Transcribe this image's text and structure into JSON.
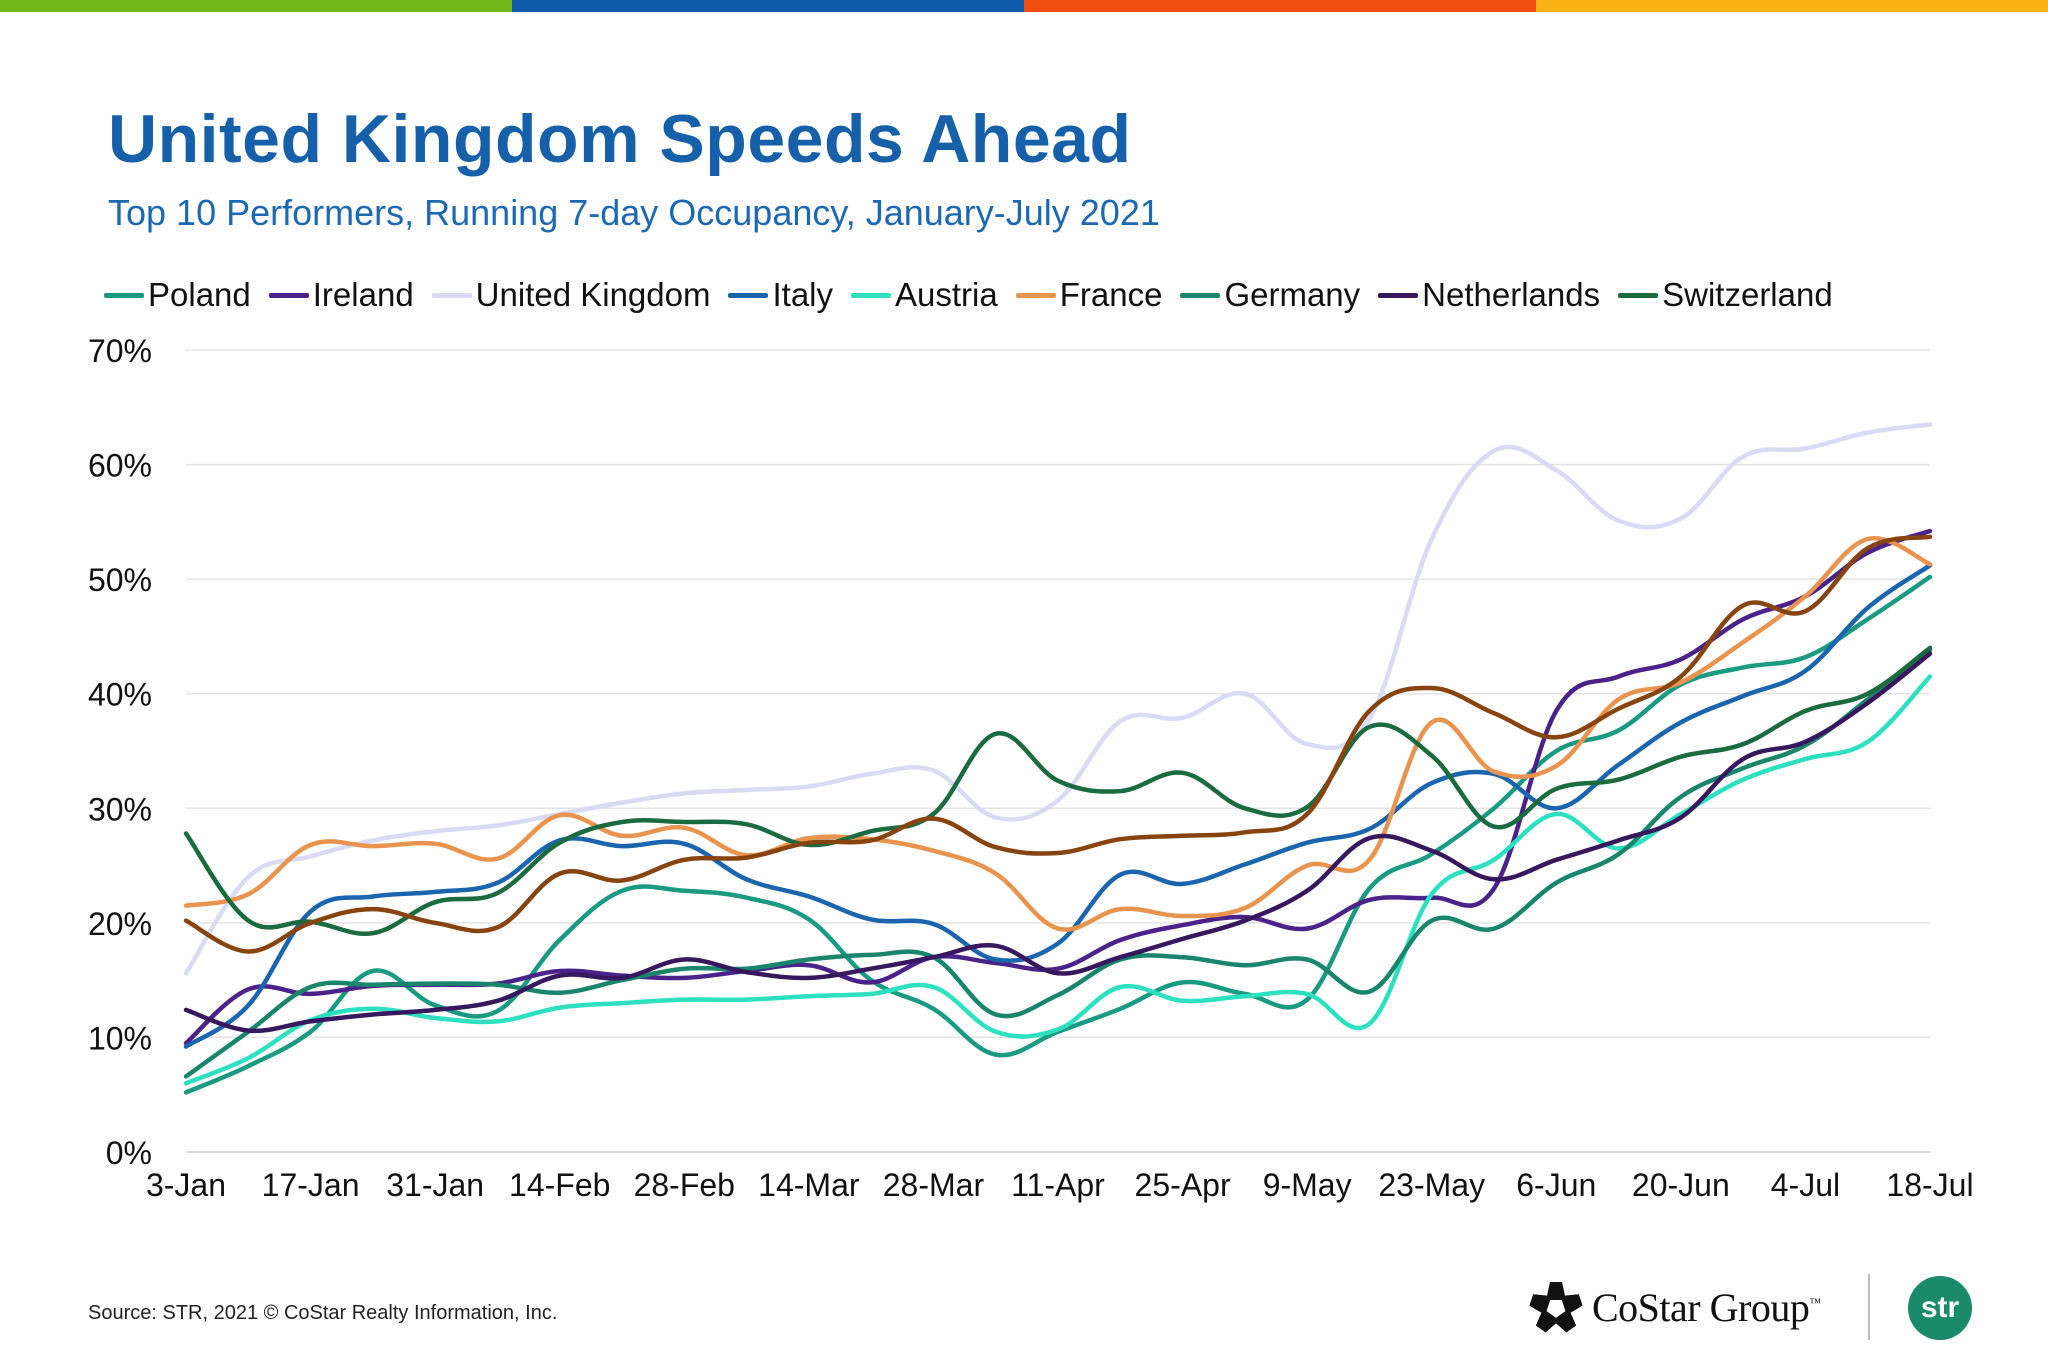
{
  "colors": {
    "top_bar": [
      "#72b81c",
      "#0e5aa9",
      "#f04e0e",
      "#fbb215"
    ],
    "title": "#1560a9",
    "subtitle": "#1d68b2",
    "str_badge": "#1a8a6a"
  },
  "header": {
    "title": "United Kingdom Speeds Ahead",
    "subtitle": "Top 10 Performers, Running 7-day Occupancy, January-July 2021"
  },
  "footer": {
    "source": "Source: STR, 2021 © CoStar Realty Information, Inc.",
    "costar_logo_text": "CoStar Group",
    "costar_trademark": "™",
    "str_logo_text": "str"
  },
  "chart_data": {
    "type": "line",
    "title": "United Kingdom Speeds Ahead",
    "subtitle": "Top 10 Performers, Running 7-day Occupancy, January-July 2021",
    "xlabel": "",
    "ylabel": "",
    "ylim": [
      0,
      70
    ],
    "yticks": [
      0,
      10,
      20,
      30,
      40,
      50,
      60,
      70
    ],
    "ytick_labels": [
      "0%",
      "10%",
      "20%",
      "30%",
      "40%",
      "50%",
      "60%",
      "70%"
    ],
    "grid": true,
    "legend_position": "top",
    "x": [
      "3-Jan",
      "10-Jan",
      "17-Jan",
      "24-Jan",
      "31-Jan",
      "7-Feb",
      "14-Feb",
      "21-Feb",
      "28-Feb",
      "7-Mar",
      "14-Mar",
      "21-Mar",
      "28-Mar",
      "4-Apr",
      "11-Apr",
      "18-Apr",
      "25-Apr",
      "2-May",
      "9-May",
      "16-May",
      "23-May",
      "30-May",
      "6-Jun",
      "13-Jun",
      "20-Jun",
      "27-Jun",
      "4-Jul",
      "11-Jul",
      "18-Jul"
    ],
    "xtick_labels": [
      "3-Jan",
      "17-Jan",
      "31-Jan",
      "14-Feb",
      "28-Feb",
      "14-Mar",
      "28-Mar",
      "11-Apr",
      "25-Apr",
      "9-May",
      "23-May",
      "6-Jun",
      "20-Jun",
      "4-Jul",
      "18-Jul"
    ],
    "series": [
      {
        "name": "Poland",
        "in_legend": true,
        "color": "#199a81",
        "values": [
          5.2,
          7.5,
          10.5,
          15.8,
          12.8,
          12.3,
          18.5,
          22.8,
          22.8,
          22.2,
          20.3,
          15.0,
          12.5,
          8.5,
          10.5,
          12.5,
          14.8,
          13.8,
          13.3,
          23.0,
          26.0,
          30.0,
          35.0,
          36.8,
          40.8,
          42.3,
          43.2,
          46.5,
          50.2
        ]
      },
      {
        "name": "Ireland",
        "in_legend": true,
        "color": "#4a228a",
        "values": [
          9.5,
          14.2,
          13.8,
          14.5,
          14.6,
          14.7,
          15.8,
          15.4,
          15.2,
          15.8,
          16.3,
          14.8,
          17.0,
          16.5,
          16.0,
          18.5,
          19.8,
          20.5,
          19.5,
          22.0,
          22.2,
          23.0,
          38.5,
          41.5,
          43.0,
          46.5,
          48.5,
          52.3,
          54.2
        ]
      },
      {
        "name": "United Kingdom",
        "in_legend": true,
        "color": "#d9daf3",
        "values": [
          15.6,
          24.0,
          25.8,
          27.2,
          28.0,
          28.5,
          29.5,
          30.5,
          31.3,
          31.6,
          31.9,
          33.0,
          33.3,
          29.2,
          30.7,
          37.6,
          37.9,
          40.0,
          35.6,
          37.8,
          53.5,
          61.2,
          59.5,
          55.1,
          55.3,
          60.7,
          61.4,
          62.8,
          63.5
        ]
      },
      {
        "name": "Italy",
        "in_legend": true,
        "color": "#1b65ae",
        "values": [
          9.2,
          12.8,
          21.0,
          22.3,
          22.7,
          23.5,
          27.2,
          26.7,
          26.9,
          23.8,
          22.3,
          20.3,
          19.9,
          16.8,
          18.2,
          24.2,
          23.4,
          25.1,
          27.0,
          28.2,
          32.2,
          33.0,
          30.0,
          33.8,
          37.5,
          39.8,
          42.0,
          47.5,
          51.2
        ]
      },
      {
        "name": "Austria",
        "in_legend": true,
        "color": "#2de0bf",
        "values": [
          6.0,
          8.2,
          11.5,
          12.5,
          11.7,
          11.4,
          12.6,
          13.0,
          13.3,
          13.3,
          13.6,
          13.8,
          14.4,
          10.5,
          10.7,
          14.4,
          13.2,
          13.6,
          13.8,
          11.2,
          22.5,
          25.5,
          29.5,
          26.5,
          29.5,
          32.5,
          34.3,
          35.8,
          41.5
        ]
      },
      {
        "name": "France",
        "in_legend": true,
        "color": "#e8944e",
        "values": [
          21.5,
          22.5,
          26.8,
          26.7,
          26.9,
          25.6,
          29.4,
          27.6,
          28.3,
          25.9,
          27.4,
          27.3,
          26.3,
          24.3,
          19.5,
          21.2,
          20.6,
          21.3,
          25.0,
          25.5,
          37.5,
          33.2,
          33.7,
          39.5,
          41.0,
          44.5,
          48.5,
          53.5,
          51.3
        ]
      },
      {
        "name": "Germany",
        "in_legend": true,
        "color": "#19866c",
        "values": [
          6.6,
          10.5,
          14.4,
          14.6,
          14.7,
          14.6,
          13.9,
          15.0,
          16.0,
          16.0,
          16.8,
          17.2,
          17.0,
          12.0,
          13.7,
          16.8,
          17.0,
          16.3,
          16.8,
          14.0,
          20.2,
          19.5,
          23.5,
          26.0,
          31.0,
          33.5,
          35.5,
          39.5,
          43.8
        ]
      },
      {
        "name": "Netherlands",
        "in_legend": true,
        "color": "#37175e",
        "values": [
          12.4,
          10.6,
          11.4,
          12.0,
          12.4,
          13.2,
          15.4,
          15.2,
          16.8,
          15.7,
          15.2,
          16.0,
          17.0,
          18.0,
          15.6,
          17.0,
          18.6,
          20.2,
          22.8,
          27.4,
          26.3,
          23.8,
          25.5,
          27.2,
          29.2,
          34.3,
          35.8,
          39.2,
          43.5
        ]
      },
      {
        "name": "Switzerland",
        "in_legend": true,
        "color": "#1a6b3f",
        "values": [
          27.8,
          20.2,
          20.1,
          19.1,
          21.8,
          22.6,
          27.0,
          28.8,
          28.8,
          28.6,
          26.8,
          28.0,
          29.5,
          36.5,
          32.4,
          31.5,
          33.1,
          30.0,
          30.1,
          37.1,
          34.6,
          28.4,
          31.7,
          32.5,
          34.5,
          35.6,
          38.5,
          40.0,
          44.0
        ]
      },
      {
        "name": "Unlabeled (brown)",
        "in_legend": false,
        "color": "#874411",
        "values": [
          20.2,
          17.5,
          20.0,
          21.2,
          20.0,
          19.6,
          24.3,
          23.7,
          25.5,
          25.7,
          27.0,
          27.2,
          29.1,
          26.6,
          26.1,
          27.3,
          27.6,
          27.9,
          29.5,
          38.5,
          40.5,
          38.3,
          36.2,
          38.7,
          41.5,
          47.7,
          47.2,
          52.7,
          53.7
        ]
      }
    ]
  }
}
